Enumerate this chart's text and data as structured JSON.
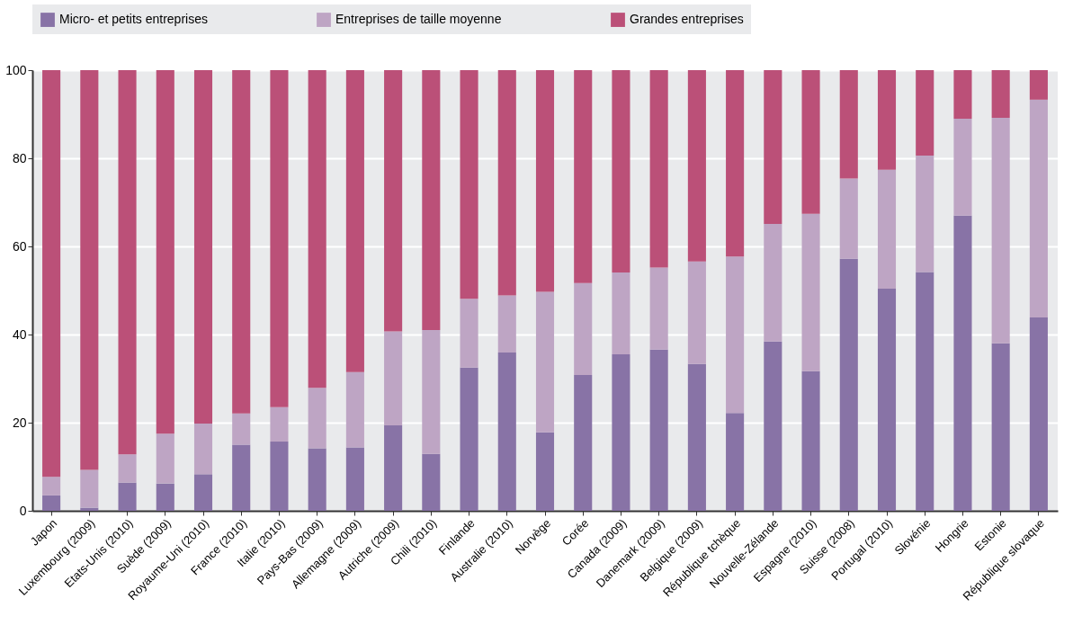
{
  "chart_data": {
    "type": "bar",
    "stacked": true,
    "categories": [
      "Japon",
      "Luxembourg (2009)",
      "Etats-Unis (2010)",
      "Suède (2009)",
      "Royaume-Uni (2010)",
      "France (2010)",
      "Italie (2010)",
      "Pays-Bas (2009)",
      "Allemagne (2009)",
      "Autriche (2009)",
      "Chili (2010)",
      "Finlande",
      "Australie (2010)",
      "Norvège",
      "Corée",
      "Canada (2009)",
      "Danemark (2009)",
      "Belgique (2009)",
      "République tchèque",
      "Nouvelle-Zélande",
      "Espagne (2010)",
      "Suisse (2008)",
      "Portugal (2010)",
      "Slovénie",
      "Hongrie",
      "Estonie",
      "République slovaque"
    ],
    "series": [
      {
        "name": "Micro- et petits entreprises",
        "color": "#8873a6",
        "values": [
          3.5,
          0.7,
          6.4,
          6.2,
          8.3,
          15.0,
          15.7,
          14.2,
          14.4,
          19.4,
          12.9,
          32.5,
          35.9,
          17.8,
          30.8,
          35.5,
          36.6,
          33.3,
          22.2,
          38.4,
          31.7,
          57.2,
          50.4,
          54.2,
          67.0,
          38.0,
          43.9
        ]
      },
      {
        "name": "Entreprises de taille moyenne",
        "color": "#bea5c4",
        "values": [
          4.2,
          8.6,
          6.4,
          11.3,
          11.5,
          7.1,
          7.8,
          13.7,
          17.1,
          21.3,
          28.1,
          15.6,
          13.0,
          31.9,
          20.9,
          18.6,
          18.6,
          23.3,
          35.5,
          26.7,
          35.7,
          18.2,
          27.0,
          26.4,
          22.0,
          51.2,
          49.4
        ]
      },
      {
        "name": "Grandes entreprises",
        "color": "#bb5078",
        "values": [
          92.3,
          90.7,
          87.2,
          82.5,
          80.2,
          77.9,
          76.5,
          72.1,
          68.5,
          59.3,
          59.0,
          51.9,
          51.1,
          50.3,
          48.3,
          45.9,
          44.8,
          43.4,
          42.3,
          34.9,
          32.6,
          24.6,
          22.6,
          19.4,
          11.0,
          10.8,
          6.7
        ]
      }
    ],
    "ylim": [
      0,
      100
    ],
    "yticks": [
      0,
      20,
      40,
      60,
      80,
      100
    ],
    "grid": "y",
    "legend": "top"
  }
}
